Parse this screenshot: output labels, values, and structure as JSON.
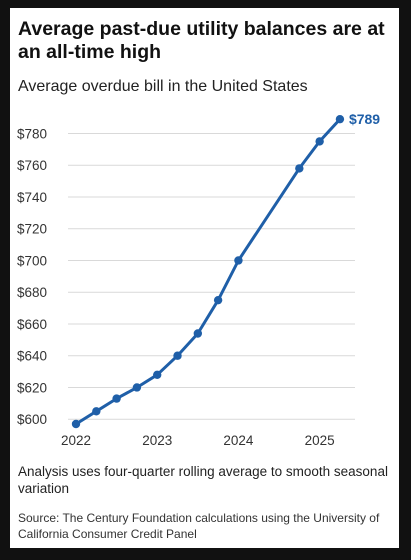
{
  "header": {
    "title": "Average past-due utility balances are at an all-time high",
    "subtitle": "Average overdue bill in the United States"
  },
  "footer": {
    "note": "Analysis uses four-quarter rolling average to smooth seasonal variation",
    "source": "Source: The Century Foundation calculations using the University of California Consumer Credit Panel"
  },
  "colors": {
    "line": "#1f5fa8",
    "grid": "#d9d9d9",
    "background": "#ffffff",
    "frame": "#111111"
  },
  "chart_data": {
    "type": "line",
    "title": "Average past-due utility balances are at an all-time high",
    "subtitle": "Average overdue bill in the United States",
    "xlabel": "",
    "ylabel": "",
    "x_ticks": [
      "2022",
      "2023",
      "2024",
      "2025"
    ],
    "y_ticks": [
      "$600",
      "$620",
      "$640",
      "$660",
      "$680",
      "$700",
      "$720",
      "$740",
      "$760",
      "$780"
    ],
    "xlim": [
      2022.0,
      2025.3
    ],
    "ylim": [
      597,
      791
    ],
    "grid": true,
    "series": [
      {
        "x": [
          2022.0,
          2022.25,
          2022.5,
          2022.75,
          2023.0,
          2023.25,
          2023.5,
          2023.75,
          2024.0,
          2024.75,
          2025.0,
          2025.25
        ],
        "y": [
          597,
          605,
          613,
          620,
          628,
          640,
          654,
          675,
          700,
          758,
          775,
          789
        ]
      }
    ],
    "end_label": "$789"
  }
}
